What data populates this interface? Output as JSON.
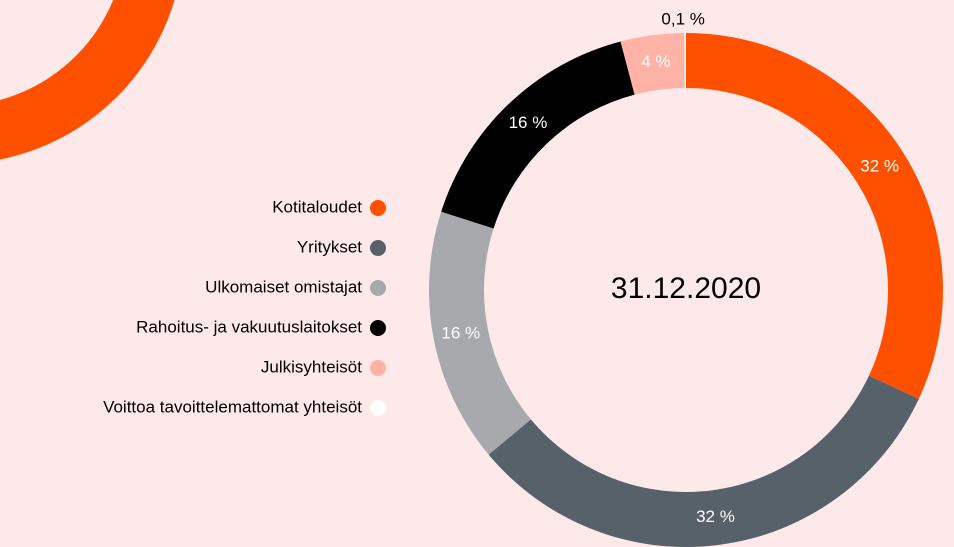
{
  "chart_data": {
    "type": "donut",
    "center_label": "31.12.2020",
    "categories": [
      "Kotitaloudet",
      "Yritykset",
      "Ulkomaiset omistajat",
      "Rahoitus- ja vakuutuslaitokset",
      "Julkisyhteisöt",
      "Voittoa tavoittelemattomat yhteisöt"
    ],
    "values": [
      32,
      32,
      16,
      16,
      4,
      0.1
    ],
    "value_labels": [
      "32 %",
      "32 %",
      "16 %",
      "16 %",
      "4 %",
      "0,1 %"
    ],
    "colors": [
      "#ff5000",
      "#56616a",
      "#a7a9ac",
      "#000000",
      "#ffb3a7",
      "#ffffff"
    ]
  }
}
